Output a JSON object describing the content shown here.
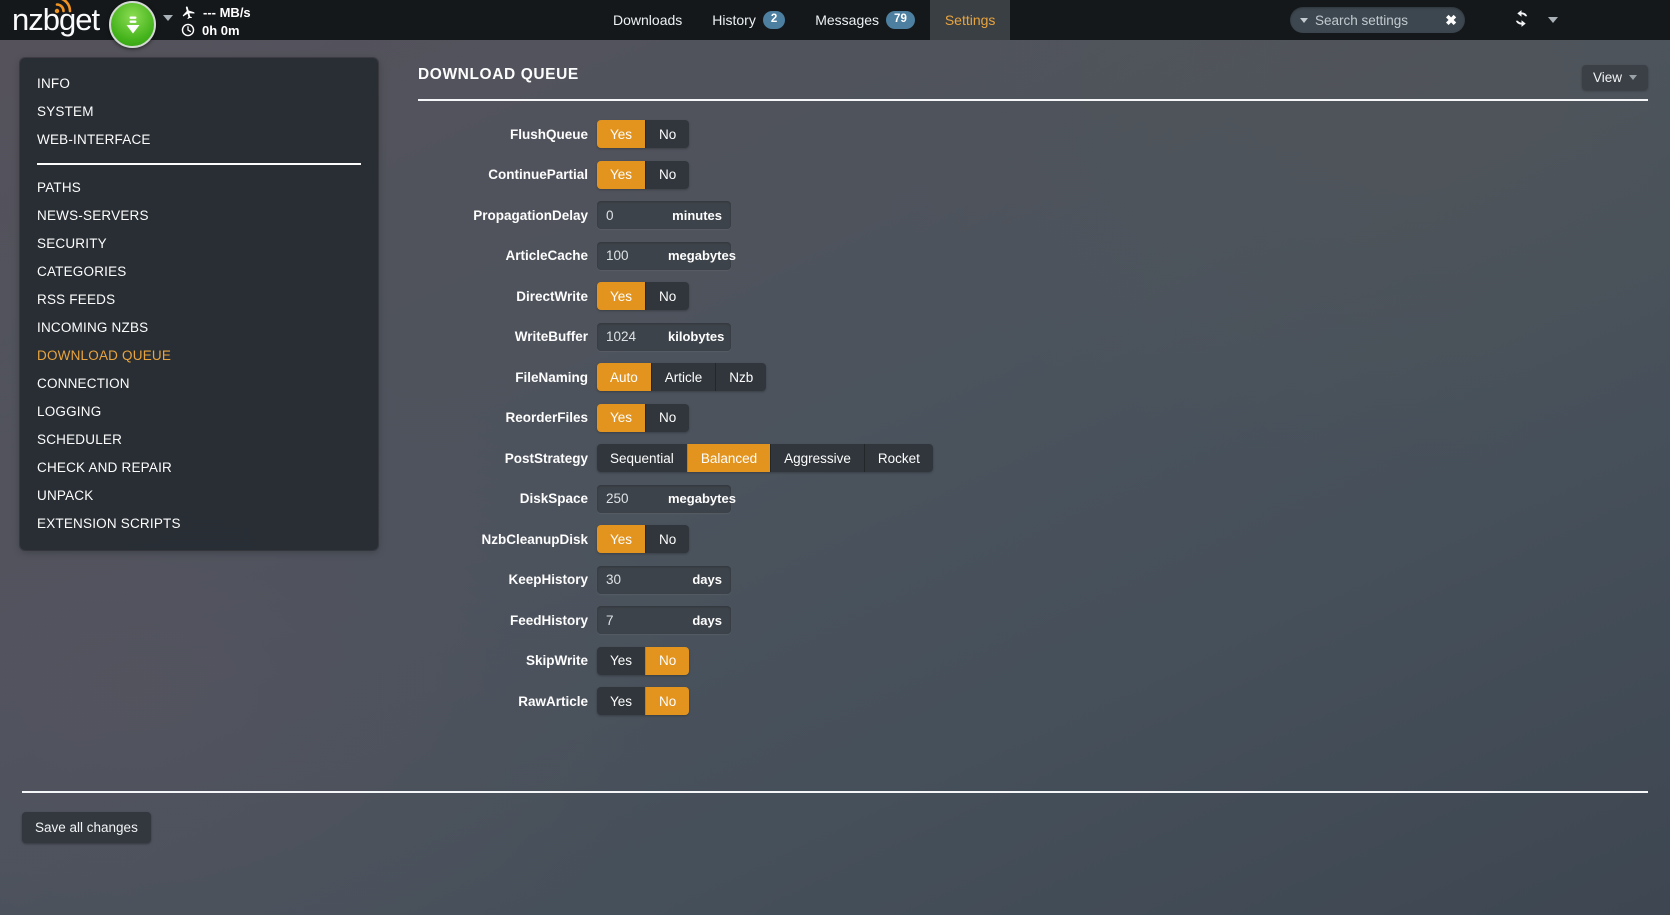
{
  "navbar": {
    "logo": "nzbget",
    "speed": "--- MB/s",
    "time_left": "0h 0m",
    "tabs": [
      {
        "label": "Downloads",
        "badge": null,
        "active": false
      },
      {
        "label": "History",
        "badge": "2",
        "active": false
      },
      {
        "label": "Messages",
        "badge": "79",
        "active": false
      },
      {
        "label": "Settings",
        "badge": null,
        "active": true
      }
    ],
    "search": {
      "placeholder": "Search settings",
      "value": ""
    }
  },
  "sidebar": {
    "active": "DOWNLOAD QUEUE",
    "groups": [
      {
        "items": [
          "INFO",
          "SYSTEM",
          "WEB-INTERFACE"
        ]
      },
      {
        "items": [
          "PATHS",
          "NEWS-SERVERS",
          "SECURITY",
          "CATEGORIES",
          "RSS FEEDS",
          "INCOMING NZBS",
          "DOWNLOAD QUEUE",
          "CONNECTION",
          "LOGGING",
          "SCHEDULER",
          "CHECK AND REPAIR",
          "UNPACK",
          "EXTENSION SCRIPTS"
        ]
      }
    ]
  },
  "main": {
    "title": "DOWNLOAD QUEUE",
    "view_button": "View",
    "settings": [
      {
        "name": "FlushQueue",
        "type": "switch",
        "options": [
          "Yes",
          "No"
        ],
        "selected": "Yes"
      },
      {
        "name": "ContinuePartial",
        "type": "switch",
        "options": [
          "Yes",
          "No"
        ],
        "selected": "Yes"
      },
      {
        "name": "PropagationDelay",
        "type": "input",
        "value": "0",
        "unit": "minutes"
      },
      {
        "name": "ArticleCache",
        "type": "input",
        "value": "100",
        "unit": "megabytes"
      },
      {
        "name": "DirectWrite",
        "type": "switch",
        "options": [
          "Yes",
          "No"
        ],
        "selected": "Yes"
      },
      {
        "name": "WriteBuffer",
        "type": "input",
        "value": "1024",
        "unit": "kilobytes"
      },
      {
        "name": "FileNaming",
        "type": "switch",
        "options": [
          "Auto",
          "Article",
          "Nzb"
        ],
        "selected": "Auto"
      },
      {
        "name": "ReorderFiles",
        "type": "switch",
        "options": [
          "Yes",
          "No"
        ],
        "selected": "Yes"
      },
      {
        "name": "PostStrategy",
        "type": "switch",
        "options": [
          "Sequential",
          "Balanced",
          "Aggressive",
          "Rocket"
        ],
        "selected": "Balanced"
      },
      {
        "name": "DiskSpace",
        "type": "input",
        "value": "250",
        "unit": "megabytes"
      },
      {
        "name": "NzbCleanupDisk",
        "type": "switch",
        "options": [
          "Yes",
          "No"
        ],
        "selected": "Yes"
      },
      {
        "name": "KeepHistory",
        "type": "input",
        "value": "30",
        "unit": "days"
      },
      {
        "name": "FeedHistory",
        "type": "input",
        "value": "7",
        "unit": "days"
      },
      {
        "name": "SkipWrite",
        "type": "switch",
        "options": [
          "Yes",
          "No"
        ],
        "selected": "No"
      },
      {
        "name": "RawArticle",
        "type": "switch",
        "options": [
          "Yes",
          "No"
        ],
        "selected": "No"
      }
    ],
    "save_button": "Save all changes"
  },
  "colors": {
    "accent_orange": "#e2941f",
    "active_tab_text": "#e9a43e",
    "badge_blue": "#4d7fa1",
    "navbar_bg": "#15181b",
    "panel_bg": "#272d33",
    "logo_arcs_orange": "#ef9422",
    "button_green": "#44b31b"
  }
}
